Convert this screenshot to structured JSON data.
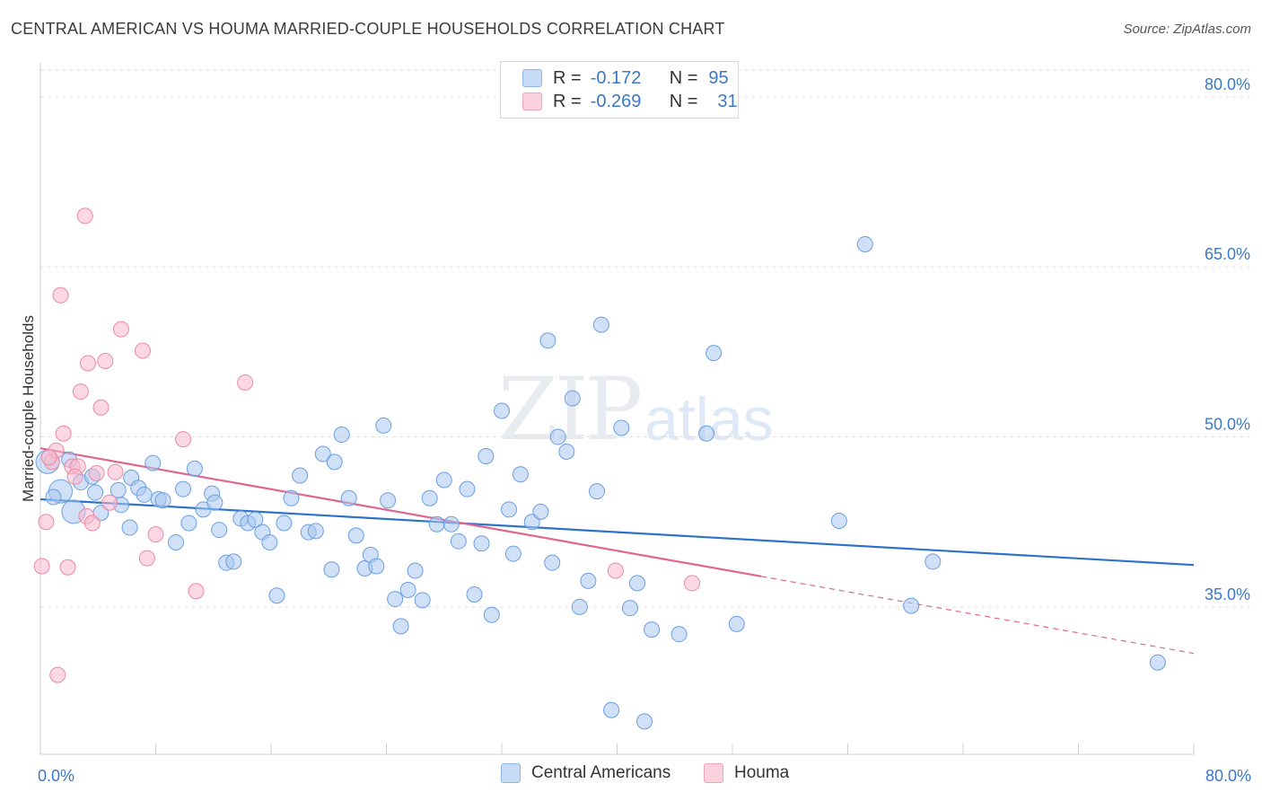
{
  "header": {
    "title": "CENTRAL AMERICAN VS HOUMA MARRIED-COUPLE HOUSEHOLDS CORRELATION CHART",
    "source": "Source: ZipAtlas.com"
  },
  "watermark": {
    "zip": "ZIP",
    "atlas": "atlas"
  },
  "legend": {
    "rows": [
      {
        "r_label": "R =",
        "r_value": "-0.172",
        "n_label": "N =",
        "n_value": "95",
        "color": "#a9c8f0"
      },
      {
        "r_label": "R =",
        "r_value": "-0.269",
        "n_label": "N =",
        "n_value": "31",
        "color": "#f7b8cc"
      }
    ]
  },
  "bottom_legend": [
    {
      "name": "Central Americans",
      "color": "#a9c8f0"
    },
    {
      "name": "Houma",
      "color": "#f7b8cc"
    }
  ],
  "chart_data": {
    "type": "scatter",
    "ylabel": "Married-couple Households",
    "xlim": [
      0,
      80
    ],
    "ylim": [
      22,
      83
    ],
    "x_tick_labels": [
      "0.0%",
      "80.0%"
    ],
    "y_ticks": [
      {
        "value": 80,
        "label": "80.0%"
      },
      {
        "value": 65,
        "label": "65.0%"
      },
      {
        "value": 50,
        "label": "50.0%"
      },
      {
        "value": 35,
        "label": "35.0%"
      }
    ],
    "series": [
      {
        "name": "Central Americans",
        "color": "#a9c8f0",
        "stroke": "#6b9fe0",
        "trend": {
          "x0": 0,
          "y0": 44.5,
          "x1": 80,
          "y1": 38.7,
          "color": "#2d72c9"
        },
        "points": [
          [
            0.5,
            47.8
          ],
          [
            1.4,
            45.2
          ],
          [
            2.3,
            43.4
          ],
          [
            2.8,
            46.0
          ],
          [
            3.6,
            46.5
          ],
          [
            3.8,
            45.1
          ],
          [
            4.2,
            43.3
          ],
          [
            5.4,
            45.3
          ],
          [
            5.6,
            44.0
          ],
          [
            6.3,
            46.4
          ],
          [
            6.8,
            45.5
          ],
          [
            7.2,
            44.9
          ],
          [
            7.8,
            47.7
          ],
          [
            8.2,
            44.5
          ],
          [
            8.5,
            44.4
          ],
          [
            9.4,
            40.7
          ],
          [
            9.9,
            45.4
          ],
          [
            10.3,
            42.4
          ],
          [
            10.7,
            47.2
          ],
          [
            11.3,
            43.6
          ],
          [
            11.9,
            45.0
          ],
          [
            12.4,
            41.8
          ],
          [
            12.9,
            38.9
          ],
          [
            13.4,
            39.0
          ],
          [
            13.9,
            42.8
          ],
          [
            14.4,
            42.4
          ],
          [
            14.9,
            42.7
          ],
          [
            15.4,
            41.6
          ],
          [
            15.9,
            40.7
          ],
          [
            16.4,
            36.0
          ],
          [
            16.9,
            42.4
          ],
          [
            17.4,
            44.6
          ],
          [
            18.0,
            46.6
          ],
          [
            18.6,
            41.6
          ],
          [
            19.1,
            41.7
          ],
          [
            19.6,
            48.5
          ],
          [
            20.2,
            38.3
          ],
          [
            20.4,
            47.8
          ],
          [
            20.9,
            50.2
          ],
          [
            21.4,
            44.6
          ],
          [
            21.9,
            41.3
          ],
          [
            22.5,
            38.4
          ],
          [
            22.9,
            39.6
          ],
          [
            23.3,
            38.6
          ],
          [
            23.8,
            51.0
          ],
          [
            24.1,
            44.4
          ],
          [
            24.6,
            35.7
          ],
          [
            25.0,
            33.3
          ],
          [
            25.5,
            36.5
          ],
          [
            26.0,
            38.2
          ],
          [
            26.5,
            35.6
          ],
          [
            27.0,
            44.6
          ],
          [
            27.5,
            42.3
          ],
          [
            28.0,
            46.2
          ],
          [
            28.5,
            42.3
          ],
          [
            29.0,
            40.8
          ],
          [
            29.6,
            45.4
          ],
          [
            30.1,
            36.1
          ],
          [
            30.6,
            40.6
          ],
          [
            30.9,
            48.3
          ],
          [
            31.3,
            34.3
          ],
          [
            32.0,
            52.3
          ],
          [
            32.5,
            43.6
          ],
          [
            32.8,
            39.7
          ],
          [
            33.3,
            46.7
          ],
          [
            34.1,
            42.5
          ],
          [
            34.7,
            43.4
          ],
          [
            35.5,
            38.9
          ],
          [
            35.2,
            58.5
          ],
          [
            35.9,
            50.0
          ],
          [
            36.5,
            48.7
          ],
          [
            36.9,
            53.4
          ],
          [
            37.4,
            35.0
          ],
          [
            38.0,
            37.3
          ],
          [
            38.6,
            45.2
          ],
          [
            38.9,
            59.9
          ],
          [
            39.6,
            25.9
          ],
          [
            40.3,
            50.8
          ],
          [
            40.9,
            34.9
          ],
          [
            41.4,
            37.1
          ],
          [
            41.9,
            24.9
          ],
          [
            42.4,
            33.0
          ],
          [
            44.3,
            32.6
          ],
          [
            46.2,
            50.3
          ],
          [
            46.7,
            57.4
          ],
          [
            48.3,
            33.5
          ],
          [
            55.4,
            42.6
          ],
          [
            57.2,
            67.0
          ],
          [
            60.4,
            35.1
          ],
          [
            61.9,
            39.0
          ],
          [
            77.5,
            30.1
          ],
          [
            0.9,
            44.7
          ],
          [
            2.0,
            48.0
          ],
          [
            6.2,
            42.0
          ],
          [
            12.1,
            44.2
          ]
        ]
      },
      {
        "name": "Houma",
        "color": "#f7b8cc",
        "stroke": "#e98aa8",
        "trend": {
          "x0": 0,
          "y0": 49.0,
          "x1": 50,
          "y1": 37.7,
          "color": "#e0668f",
          "dash_to_x": 80,
          "dash_to_y": 30.9
        },
        "points": [
          [
            0.1,
            38.6
          ],
          [
            0.4,
            42.5
          ],
          [
            0.8,
            47.8
          ],
          [
            1.1,
            48.8
          ],
          [
            1.2,
            29.0
          ],
          [
            1.4,
            62.5
          ],
          [
            1.6,
            50.3
          ],
          [
            1.9,
            38.5
          ],
          [
            2.2,
            47.4
          ],
          [
            2.6,
            47.4
          ],
          [
            2.8,
            54.0
          ],
          [
            3.1,
            69.5
          ],
          [
            3.2,
            43.0
          ],
          [
            3.3,
            56.5
          ],
          [
            3.6,
            42.4
          ],
          [
            3.9,
            46.8
          ],
          [
            4.2,
            52.6
          ],
          [
            4.5,
            56.7
          ],
          [
            4.8,
            44.2
          ],
          [
            5.2,
            46.9
          ],
          [
            5.6,
            59.5
          ],
          [
            7.1,
            57.6
          ],
          [
            7.4,
            39.3
          ],
          [
            8.0,
            41.4
          ],
          [
            9.9,
            49.8
          ],
          [
            10.8,
            36.4
          ],
          [
            14.2,
            54.8
          ],
          [
            39.9,
            38.2
          ],
          [
            45.2,
            37.1
          ],
          [
            0.6,
            48.2
          ],
          [
            2.4,
            46.5
          ]
        ]
      }
    ]
  }
}
